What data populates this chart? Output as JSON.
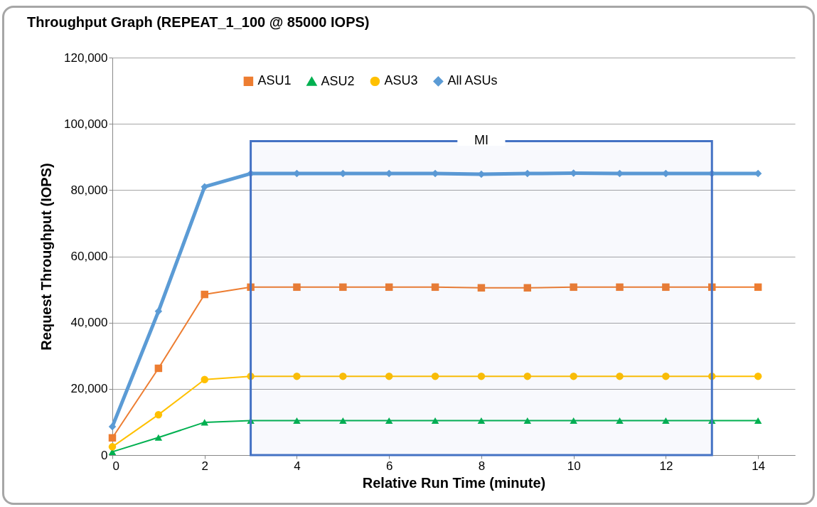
{
  "chart_data": {
    "type": "line",
    "title": "Throughput Graph (REPEAT_1_100 @ 85000 IOPS)",
    "xlabel": "Relative Run Time (minute)",
    "ylabel": "Request Throughput (IOPS)",
    "x": [
      0,
      1,
      2,
      3,
      4,
      5,
      6,
      7,
      8,
      9,
      10,
      11,
      12,
      13,
      14
    ],
    "series": [
      {
        "name": "ASU1",
        "color": "#ed7d31",
        "marker": "square",
        "values": [
          5200,
          26200,
          48500,
          50700,
          50700,
          50700,
          50700,
          50700,
          50500,
          50500,
          50700,
          50700,
          50700,
          50700,
          50700
        ]
      },
      {
        "name": "ASU2",
        "color": "#00b050",
        "marker": "triangle",
        "values": [
          1000,
          5300,
          9900,
          10400,
          10400,
          10400,
          10400,
          10400,
          10400,
          10400,
          10400,
          10400,
          10400,
          10400,
          10400
        ]
      },
      {
        "name": "ASU3",
        "color": "#ffc000",
        "marker": "circle",
        "values": [
          2500,
          12200,
          22800,
          23800,
          23800,
          23800,
          23800,
          23800,
          23800,
          23800,
          23800,
          23800,
          23800,
          23800,
          23800
        ]
      },
      {
        "name": "All ASUs",
        "color": "#5b9bd5",
        "marker": "diamond",
        "values": [
          8600,
          43400,
          81000,
          85000,
          85000,
          85000,
          85000,
          85000,
          84800,
          85000,
          85100,
          85000,
          85000,
          85000,
          85000
        ]
      }
    ],
    "xlim": [
      0,
      14.8
    ],
    "xticks": [
      0,
      2,
      4,
      6,
      8,
      10,
      12,
      14
    ],
    "ylim": [
      0,
      120000
    ],
    "yticks": [
      0,
      {
        "value": 20000,
        "label": "20,000"
      },
      {
        "value": 40000,
        "label": "40,000"
      },
      {
        "value": 60000,
        "label": "60,000"
      },
      {
        "value": 80000,
        "label": "80,000"
      },
      {
        "value": 100000,
        "label": "100,000"
      },
      {
        "value": 120000,
        "label": "120,000"
      }
    ],
    "bands": [
      {
        "axis": "x",
        "from": 3,
        "to": 13,
        "label": "MI",
        "color": "#4472c4"
      }
    ],
    "grid": "y",
    "legend": "top"
  }
}
